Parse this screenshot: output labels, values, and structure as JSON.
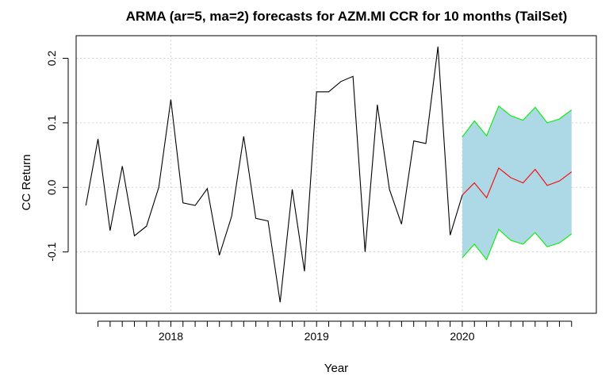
{
  "chart_data": {
    "type": "line",
    "title": "ARMA (ar=5, ma=2) forecasts for AZM.MI CCR for 10 months (TailSet)",
    "xlabel": "Year",
    "ylabel": "CC Return",
    "x_tick_labels": [
      "2018",
      "2019",
      "2020"
    ],
    "y_tick_labels": [
      "-0.1",
      "0.0",
      "0.1",
      "0.2"
    ],
    "y_ticks": [
      -0.1,
      0.0,
      0.1,
      0.2
    ],
    "x_ticks": [
      2018,
      2019,
      2020
    ],
    "xlim": [
      2017.35,
      2020.92
    ],
    "ylim": [
      -0.195,
      0.235
    ],
    "grid": true,
    "series": [
      {
        "color": "#000000",
        "x": [
          2017.417,
          2017.5,
          2017.583,
          2017.667,
          2017.75,
          2017.833,
          2017.917,
          2018.0,
          2018.083,
          2018.167,
          2018.25,
          2018.333,
          2018.417,
          2018.5,
          2018.583,
          2018.667,
          2018.75,
          2018.833,
          2018.917,
          2019.0,
          2019.083,
          2019.167,
          2019.25,
          2019.333,
          2019.417,
          2019.5,
          2019.583,
          2019.667,
          2019.75,
          2019.833,
          2019.917,
          2020.0
        ],
        "values": [
          -0.028,
          0.075,
          -0.067,
          0.033,
          -0.075,
          -0.06,
          0.0,
          0.136,
          -0.024,
          -0.028,
          -0.002,
          -0.105,
          -0.045,
          0.079,
          -0.048,
          -0.052,
          -0.178,
          -0.003,
          -0.13,
          0.148,
          0.148,
          0.164,
          0.172,
          -0.1,
          0.128,
          -0.003,
          -0.057,
          0.072,
          0.068,
          0.218,
          -0.074,
          -0.012
        ]
      },
      {
        "color": "#ff0000",
        "x": [
          2020.0,
          2020.083,
          2020.167,
          2020.25,
          2020.333,
          2020.417,
          2020.5,
          2020.583,
          2020.667,
          2020.75
        ],
        "values": [
          -0.012,
          0.007,
          -0.016,
          0.03,
          0.015,
          0.007,
          0.028,
          0.003,
          0.01,
          0.024
        ]
      },
      {
        "color": "#00ee00",
        "x": [
          2020.0,
          2020.083,
          2020.167,
          2020.25,
          2020.333,
          2020.417,
          2020.5,
          2020.583,
          2020.667,
          2020.75
        ],
        "values": [
          0.078,
          0.103,
          0.08,
          0.126,
          0.111,
          0.104,
          0.124,
          0.1,
          0.106,
          0.12
        ]
      },
      {
        "color": "#00ee00",
        "x": [
          2020.0,
          2020.083,
          2020.167,
          2020.25,
          2020.333,
          2020.417,
          2020.5,
          2020.583,
          2020.667,
          2020.75
        ],
        "values": [
          -0.109,
          -0.088,
          -0.112,
          -0.065,
          -0.082,
          -0.088,
          -0.07,
          -0.092,
          -0.086,
          -0.072
        ]
      }
    ],
    "band": {
      "color": "#add8e6",
      "x": [
        2020.0,
        2020.083,
        2020.167,
        2020.25,
        2020.333,
        2020.417,
        2020.5,
        2020.583,
        2020.667,
        2020.75
      ],
      "upper": [
        0.078,
        0.103,
        0.08,
        0.126,
        0.111,
        0.104,
        0.124,
        0.1,
        0.106,
        0.12
      ],
      "lower": [
        -0.109,
        -0.088,
        -0.112,
        -0.065,
        -0.082,
        -0.088,
        -0.07,
        -0.092,
        -0.086,
        -0.072
      ]
    },
    "minor_x_ticks_per_year": 12
  }
}
